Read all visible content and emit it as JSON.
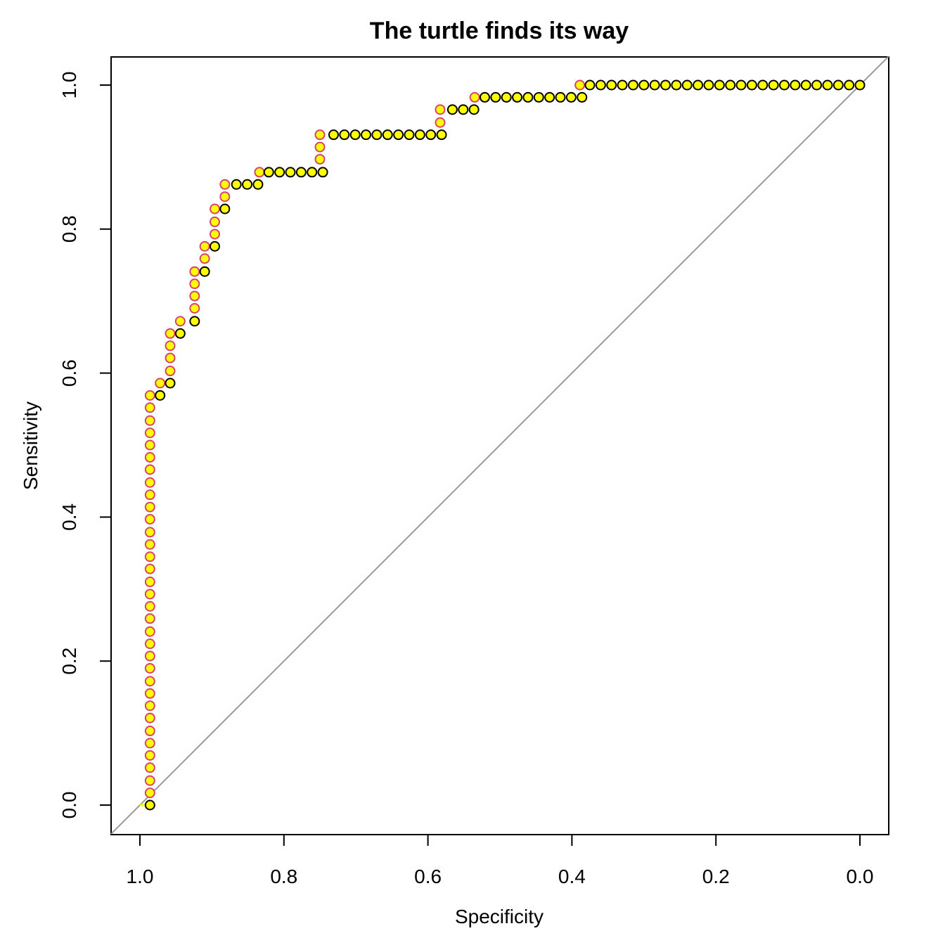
{
  "chart_data": {
    "type": "scatter",
    "title": "The turtle finds its way",
    "xlabel": "Specificity",
    "ylabel": "Sensitivity",
    "xlim": [
      1.0,
      0.0
    ],
    "ylim": [
      0.0,
      1.0
    ],
    "x_reversed": true,
    "x_ticks": [
      "1.0",
      "0.8",
      "0.6",
      "0.4",
      "0.2",
      "0.0"
    ],
    "y_ticks": [
      "0.0",
      "0.2",
      "0.4",
      "0.6",
      "0.8",
      "1.0"
    ],
    "grid": false,
    "legend": "none",
    "reference_line": {
      "from": [
        1.0,
        0.0
      ],
      "to": [
        0.0,
        1.0
      ],
      "color": "#999999"
    },
    "series": [
      {
        "style": "pink-open-circle-yellow-fill",
        "stroke": "#d6426a",
        "fill": "#ffff00",
        "points": [
          [
            0.986,
            0.017
          ],
          [
            0.986,
            0.034
          ],
          [
            0.986,
            0.052
          ],
          [
            0.986,
            0.069
          ],
          [
            0.986,
            0.086
          ],
          [
            0.986,
            0.103
          ],
          [
            0.986,
            0.121
          ],
          [
            0.986,
            0.138
          ],
          [
            0.986,
            0.155
          ],
          [
            0.986,
            0.172
          ],
          [
            0.986,
            0.19
          ],
          [
            0.986,
            0.207
          ],
          [
            0.986,
            0.224
          ],
          [
            0.986,
            0.241
          ],
          [
            0.986,
            0.259
          ],
          [
            0.986,
            0.276
          ],
          [
            0.986,
            0.293
          ],
          [
            0.986,
            0.31
          ],
          [
            0.986,
            0.328
          ],
          [
            0.986,
            0.345
          ],
          [
            0.986,
            0.362
          ],
          [
            0.986,
            0.379
          ],
          [
            0.986,
            0.397
          ],
          [
            0.986,
            0.414
          ],
          [
            0.986,
            0.431
          ],
          [
            0.986,
            0.448
          ],
          [
            0.986,
            0.466
          ],
          [
            0.986,
            0.483
          ],
          [
            0.986,
            0.5
          ],
          [
            0.986,
            0.517
          ],
          [
            0.986,
            0.534
          ],
          [
            0.986,
            0.552
          ],
          [
            0.986,
            0.569
          ],
          [
            0.972,
            0.586
          ],
          [
            0.958,
            0.603
          ],
          [
            0.958,
            0.621
          ],
          [
            0.958,
            0.638
          ],
          [
            0.958,
            0.655
          ],
          [
            0.944,
            0.672
          ],
          [
            0.924,
            0.69
          ],
          [
            0.924,
            0.707
          ],
          [
            0.924,
            0.724
          ],
          [
            0.924,
            0.741
          ],
          [
            0.91,
            0.759
          ],
          [
            0.91,
            0.776
          ],
          [
            0.896,
            0.793
          ],
          [
            0.896,
            0.81
          ],
          [
            0.896,
            0.828
          ],
          [
            0.882,
            0.845
          ],
          [
            0.882,
            0.862
          ],
          [
            0.834,
            0.879
          ],
          [
            0.75,
            0.897
          ],
          [
            0.75,
            0.914
          ],
          [
            0.75,
            0.931
          ],
          [
            0.583,
            0.948
          ],
          [
            0.583,
            0.966
          ],
          [
            0.535,
            0.983
          ],
          [
            0.389,
            1.0
          ]
        ]
      },
      {
        "style": "black-open-circle-yellow-fill",
        "stroke": "#000000",
        "fill": "#ffff00",
        "points": [
          [
            0.986,
            0.0
          ],
          [
            0.972,
            0.569
          ],
          [
            0.958,
            0.586
          ],
          [
            0.944,
            0.655
          ],
          [
            0.924,
            0.672
          ],
          [
            0.91,
            0.741
          ],
          [
            0.896,
            0.776
          ],
          [
            0.882,
            0.828
          ],
          [
            0.866,
            0.862
          ],
          [
            0.851,
            0.862
          ],
          [
            0.836,
            0.862
          ],
          [
            0.821,
            0.879
          ],
          [
            0.806,
            0.879
          ],
          [
            0.791,
            0.879
          ],
          [
            0.776,
            0.879
          ],
          [
            0.761,
            0.879
          ],
          [
            0.746,
            0.879
          ],
          [
            0.731,
            0.931
          ],
          [
            0.716,
            0.931
          ],
          [
            0.701,
            0.931
          ],
          [
            0.686,
            0.931
          ],
          [
            0.671,
            0.931
          ],
          [
            0.656,
            0.931
          ],
          [
            0.641,
            0.931
          ],
          [
            0.626,
            0.931
          ],
          [
            0.611,
            0.931
          ],
          [
            0.596,
            0.931
          ],
          [
            0.581,
            0.931
          ],
          [
            0.566,
            0.966
          ],
          [
            0.551,
            0.966
          ],
          [
            0.536,
            0.966
          ],
          [
            0.521,
            0.983
          ],
          [
            0.506,
            0.983
          ],
          [
            0.491,
            0.983
          ],
          [
            0.476,
            0.983
          ],
          [
            0.461,
            0.983
          ],
          [
            0.446,
            0.983
          ],
          [
            0.431,
            0.983
          ],
          [
            0.416,
            0.983
          ],
          [
            0.401,
            0.983
          ],
          [
            0.386,
            0.983
          ],
          [
            0.375,
            1.0
          ],
          [
            0.36,
            1.0
          ],
          [
            0.345,
            1.0
          ],
          [
            0.33,
            1.0
          ],
          [
            0.315,
            1.0
          ],
          [
            0.3,
            1.0
          ],
          [
            0.285,
            1.0
          ],
          [
            0.27,
            1.0
          ],
          [
            0.255,
            1.0
          ],
          [
            0.24,
            1.0
          ],
          [
            0.225,
            1.0
          ],
          [
            0.21,
            1.0
          ],
          [
            0.195,
            1.0
          ],
          [
            0.18,
            1.0
          ],
          [
            0.165,
            1.0
          ],
          [
            0.15,
            1.0
          ],
          [
            0.135,
            1.0
          ],
          [
            0.12,
            1.0
          ],
          [
            0.105,
            1.0
          ],
          [
            0.09,
            1.0
          ],
          [
            0.075,
            1.0
          ],
          [
            0.06,
            1.0
          ],
          [
            0.045,
            1.0
          ],
          [
            0.03,
            1.0
          ],
          [
            0.015,
            1.0
          ],
          [
            0.0,
            1.0
          ]
        ]
      }
    ],
    "trace_line": {
      "color": "#ffff00",
      "points": [
        [
          1.0,
          0.0
        ],
        [
          0.986,
          0.0
        ]
      ]
    }
  }
}
